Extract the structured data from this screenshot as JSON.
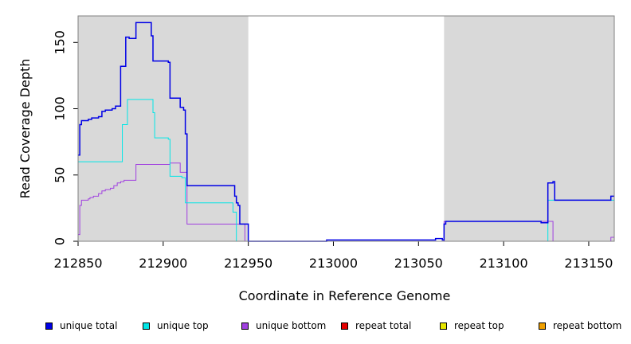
{
  "chart_data": {
    "type": "line",
    "title": "",
    "xlabel": "Coordinate in Reference Genome",
    "ylabel": "Read Coverage Depth",
    "xlim": [
      212850,
      213165
    ],
    "ylim": [
      0,
      170
    ],
    "x_ticks": [
      "212850",
      "212900",
      "212950",
      "213000",
      "213050",
      "213100",
      "213150"
    ],
    "y_ticks": [
      "0",
      "50",
      "100",
      "150"
    ],
    "shaded_regions": [
      [
        212850,
        212950
      ],
      [
        213065,
        213165
      ]
    ],
    "shade_color": "#d9d9d9",
    "legend_position": "bottom",
    "series": [
      {
        "name": "unique total",
        "color": "#0000e6",
        "steps": [
          [
            212850,
            65
          ],
          [
            212851,
            88
          ],
          [
            212852,
            91
          ],
          [
            212856,
            92
          ],
          [
            212858,
            93
          ],
          [
            212862,
            94
          ],
          [
            212864,
            98
          ],
          [
            212866,
            99
          ],
          [
            212870,
            100
          ],
          [
            212872,
            102
          ],
          [
            212875,
            132
          ],
          [
            212878,
            154
          ],
          [
            212880,
            153
          ],
          [
            212884,
            165
          ],
          [
            212893,
            155
          ],
          [
            212894,
            136
          ],
          [
            212903,
            135
          ],
          [
            212904,
            108
          ],
          [
            212910,
            101
          ],
          [
            212912,
            99
          ],
          [
            212913,
            81
          ],
          [
            212914,
            42
          ],
          [
            212942,
            34
          ],
          [
            212943,
            29
          ],
          [
            212944,
            27
          ],
          [
            212945,
            13
          ],
          [
            212950,
            0
          ],
          [
            212996,
            1
          ],
          [
            213060,
            2
          ],
          [
            213064,
            1
          ],
          [
            213065,
            13
          ],
          [
            213066,
            15
          ],
          [
            213122,
            14
          ],
          [
            213126,
            44
          ],
          [
            213129,
            45
          ],
          [
            213130,
            31
          ],
          [
            213163,
            34
          ],
          [
            213165,
            34
          ]
        ]
      },
      {
        "name": "unique top",
        "color": "#00e6e6",
        "steps": [
          [
            212850,
            60
          ],
          [
            212876,
            88
          ],
          [
            212879,
            107
          ],
          [
            212894,
            97
          ],
          [
            212895,
            78
          ],
          [
            212903,
            77
          ],
          [
            212904,
            49
          ],
          [
            212911,
            48
          ],
          [
            212913,
            29
          ],
          [
            212940,
            29
          ],
          [
            212941,
            22
          ],
          [
            212943,
            0
          ],
          [
            213122,
            0
          ],
          [
            213126,
            31
          ],
          [
            213165,
            31
          ]
        ]
      },
      {
        "name": "unique bottom",
        "color": "#a040e0",
        "steps": [
          [
            212850,
            5
          ],
          [
            212851,
            27
          ],
          [
            212852,
            31
          ],
          [
            212856,
            32
          ],
          [
            212857,
            33
          ],
          [
            212859,
            34
          ],
          [
            212862,
            36
          ],
          [
            212864,
            38
          ],
          [
            212866,
            39
          ],
          [
            212869,
            40
          ],
          [
            212871,
            42
          ],
          [
            212873,
            44
          ],
          [
            212875,
            45
          ],
          [
            212877,
            46
          ],
          [
            212884,
            58
          ],
          [
            212904,
            59
          ],
          [
            212910,
            52
          ],
          [
            212914,
            13
          ],
          [
            212948,
            0
          ],
          [
            213065,
            15
          ],
          [
            213129,
            0
          ],
          [
            213163,
            3
          ],
          [
            213165,
            3
          ]
        ]
      },
      {
        "name": "repeat total",
        "color": "#e60000",
        "steps": [
          [
            212850,
            0
          ],
          [
            213165,
            0
          ]
        ]
      },
      {
        "name": "repeat top",
        "color": "#e6e600",
        "steps": [
          [
            212850,
            0
          ],
          [
            213165,
            0
          ]
        ]
      },
      {
        "name": "repeat bottom",
        "color": "#f0a000",
        "steps": [
          [
            212850,
            0
          ],
          [
            212950,
            0
          ]
        ]
      }
    ]
  }
}
